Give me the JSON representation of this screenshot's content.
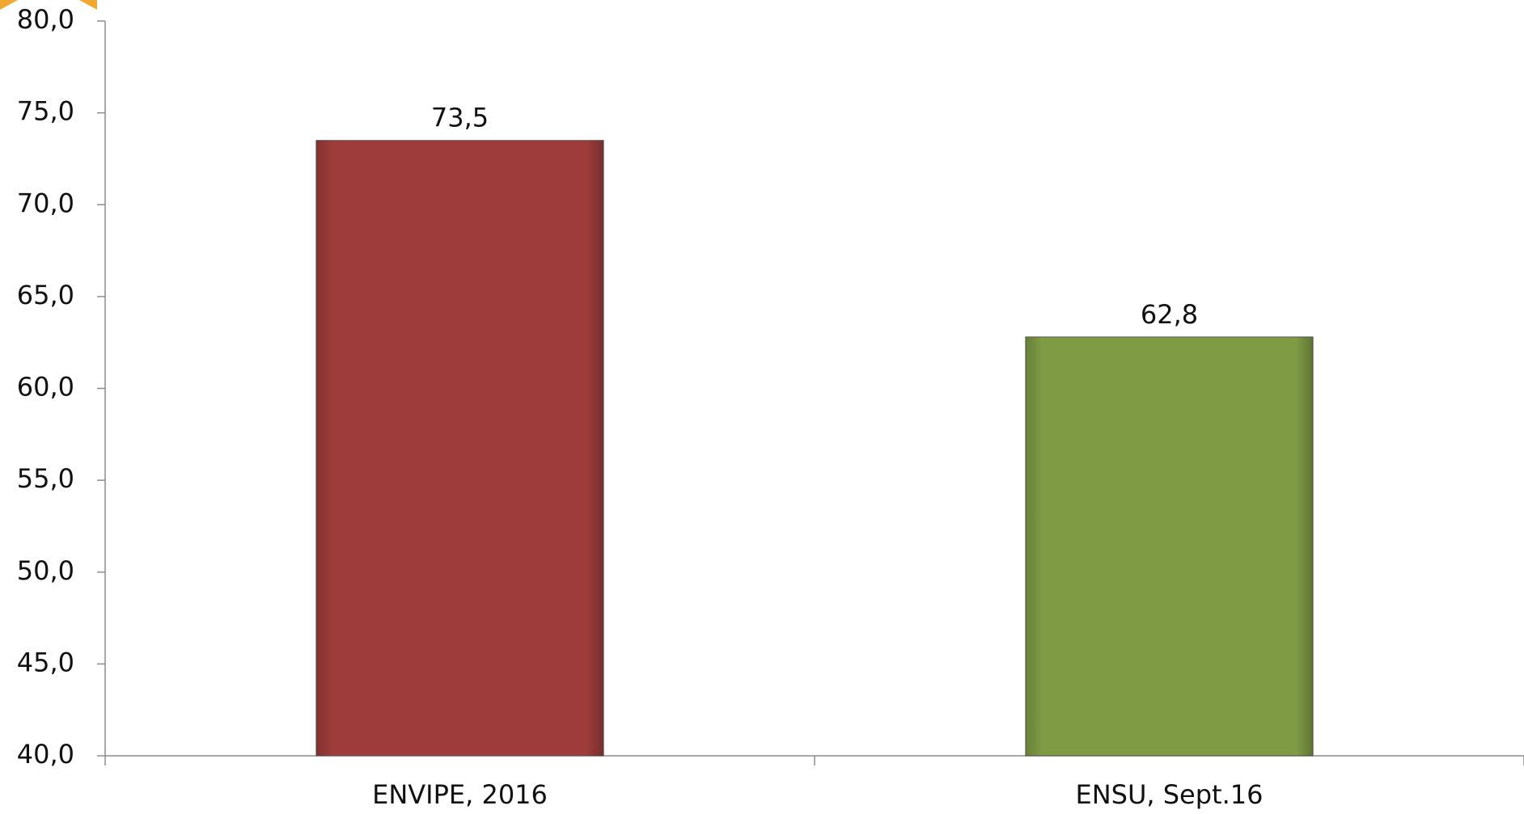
{
  "chart_data": {
    "type": "bar",
    "categories": [
      "ENVIPE, 2016",
      "ENSU, Sept.16"
    ],
    "values": [
      73.5,
      62.8
    ],
    "value_labels": [
      "73,5",
      "62,8"
    ],
    "colors": [
      "#9e3c3b",
      "#7f9c45"
    ],
    "ylim": [
      40,
      80
    ],
    "yticks": [
      {
        "value": 40,
        "label": "40,0"
      },
      {
        "value": 45,
        "label": "45,0"
      },
      {
        "value": 50,
        "label": "50,0"
      },
      {
        "value": 55,
        "label": "55,0"
      },
      {
        "value": 60,
        "label": "60,0"
      },
      {
        "value": 65,
        "label": "65,0"
      },
      {
        "value": 70,
        "label": "70,0"
      },
      {
        "value": 75,
        "label": "75,0"
      },
      {
        "value": 80,
        "label": "80,0"
      }
    ],
    "grid": false
  }
}
